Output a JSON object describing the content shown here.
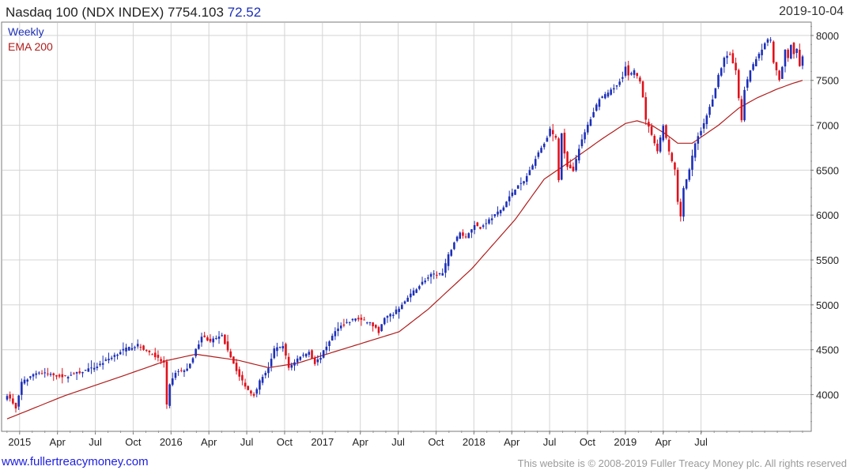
{
  "header": {
    "title": "Nasdaq 100 (NDX INDEX) 7754.103",
    "change": "72.52",
    "date": "2019-10-04"
  },
  "footer": {
    "link": "www.fullertreacymoney.com",
    "copyright": "This website is © 2008-2019 Fuller Treacy Money plc. All rights reserved"
  },
  "colors": {
    "up": "#1c2fb8",
    "down": "#e0101a",
    "ema": "#b01c1c",
    "grid": "#d4d4d4"
  },
  "chart_data": {
    "type": "candlestick",
    "legend": [
      {
        "label": "Weekly",
        "color": "#1c2fb8"
      },
      {
        "label": "EMA 200",
        "color": "#b01c1c"
      }
    ],
    "x_tick_labels": [
      "2015",
      "Apr",
      "Jul",
      "Oct",
      "2016",
      "Apr",
      "Jul",
      "Oct",
      "2017",
      "Apr",
      "Jul",
      "Oct",
      "2018",
      "Apr",
      "Jul",
      "Oct",
      "2019",
      "Apr",
      "Jul"
    ],
    "y_ticks": [
      4000,
      4500,
      5000,
      5500,
      6000,
      6500,
      7000,
      7500,
      8000
    ],
    "ylim": [
      3600,
      8140
    ],
    "close_anchors": [
      [
        0,
        4000
      ],
      [
        3,
        3850
      ],
      [
        5,
        4130
      ],
      [
        10,
        4250
      ],
      [
        20,
        4200
      ],
      [
        30,
        4300
      ],
      [
        35,
        4400
      ],
      [
        40,
        4500
      ],
      [
        45,
        4550
      ],
      [
        50,
        4450
      ],
      [
        54,
        4350
      ],
      [
        55,
        3880
      ],
      [
        56,
        4100
      ],
      [
        58,
        4250
      ],
      [
        62,
        4280
      ],
      [
        64,
        4420
      ],
      [
        67,
        4650
      ],
      [
        70,
        4600
      ],
      [
        74,
        4650
      ],
      [
        78,
        4350
      ],
      [
        80,
        4200
      ],
      [
        83,
        4050
      ],
      [
        85,
        4000
      ],
      [
        87,
        4150
      ],
      [
        90,
        4300
      ],
      [
        92,
        4500
      ],
      [
        95,
        4550
      ],
      [
        97,
        4300
      ],
      [
        100,
        4400
      ],
      [
        104,
        4480
      ],
      [
        106,
        4350
      ],
      [
        108,
        4420
      ],
      [
        111,
        4600
      ],
      [
        114,
        4750
      ],
      [
        117,
        4800
      ],
      [
        120,
        4850
      ],
      [
        125,
        4800
      ],
      [
        128,
        4700
      ],
      [
        130,
        4850
      ],
      [
        133,
        4900
      ],
      [
        136,
        5000
      ],
      [
        140,
        5150
      ],
      [
        143,
        5250
      ],
      [
        146,
        5330
      ],
      [
        150,
        5350
      ],
      [
        152,
        5550
      ],
      [
        154,
        5700
      ],
      [
        156,
        5800
      ],
      [
        158,
        5750
      ],
      [
        161,
        5900
      ],
      [
        163,
        5850
      ],
      [
        165,
        5920
      ],
      [
        168,
        6000
      ],
      [
        170,
        6050
      ],
      [
        173,
        6200
      ],
      [
        176,
        6330
      ],
      [
        178,
        6370
      ],
      [
        180,
        6500
      ],
      [
        183,
        6700
      ],
      [
        185,
        6800
      ],
      [
        187,
        6950
      ],
      [
        189,
        6850
      ],
      [
        190,
        6400
      ],
      [
        191,
        6900
      ],
      [
        192,
        6700
      ],
      [
        193,
        6550
      ],
      [
        195,
        6500
      ],
      [
        197,
        6750
      ],
      [
        200,
        7000
      ],
      [
        202,
        7150
      ],
      [
        204,
        7300
      ],
      [
        207,
        7350
      ],
      [
        210,
        7450
      ],
      [
        212,
        7550
      ],
      [
        213,
        7650
      ],
      [
        214,
        7550
      ],
      [
        216,
        7600
      ],
      [
        218,
        7500
      ],
      [
        219,
        7300
      ],
      [
        220,
        7050
      ],
      [
        222,
        6900
      ],
      [
        224,
        6700
      ],
      [
        226,
        7000
      ],
      [
        228,
        6700
      ],
      [
        230,
        6500
      ],
      [
        231,
        6150
      ],
      [
        232,
        6000
      ],
      [
        233,
        6300
      ],
      [
        235,
        6500
      ],
      [
        237,
        6800
      ],
      [
        239,
        6950
      ],
      [
        241,
        7100
      ],
      [
        243,
        7300
      ],
      [
        245,
        7550
      ],
      [
        247,
        7750
      ],
      [
        249,
        7800
      ],
      [
        251,
        7600
      ],
      [
        252,
        7300
      ],
      [
        253,
        7050
      ],
      [
        254,
        7400
      ],
      [
        256,
        7600
      ],
      [
        258,
        7750
      ],
      [
        260,
        7850
      ],
      [
        262,
        7950
      ],
      [
        263,
        7950
      ],
      [
        264,
        7700
      ],
      [
        265,
        7600
      ],
      [
        266,
        7500
      ],
      [
        267,
        7650
      ],
      [
        268,
        7850
      ],
      [
        269,
        7750
      ],
      [
        270,
        7900
      ],
      [
        271,
        7800
      ],
      [
        272,
        7850
      ],
      [
        273,
        7650
      ],
      [
        274,
        7760
      ]
    ],
    "ema_anchors": [
      [
        0,
        3730
      ],
      [
        20,
        3990
      ],
      [
        40,
        4210
      ],
      [
        55,
        4380
      ],
      [
        65,
        4450
      ],
      [
        80,
        4380
      ],
      [
        90,
        4300
      ],
      [
        100,
        4350
      ],
      [
        110,
        4450
      ],
      [
        125,
        4600
      ],
      [
        135,
        4700
      ],
      [
        145,
        4950
      ],
      [
        160,
        5400
      ],
      [
        175,
        5950
      ],
      [
        185,
        6400
      ],
      [
        195,
        6620
      ],
      [
        205,
        6850
      ],
      [
        213,
        7020
      ],
      [
        217,
        7050
      ],
      [
        222,
        7000
      ],
      [
        227,
        6900
      ],
      [
        231,
        6800
      ],
      [
        236,
        6800
      ],
      [
        245,
        7000
      ],
      [
        252,
        7190
      ],
      [
        258,
        7300
      ],
      [
        265,
        7400
      ],
      [
        270,
        7460
      ],
      [
        274,
        7500
      ]
    ],
    "n_weeks": 275,
    "title": "Nasdaq 100 (NDX INDEX) 7754.103",
    "xlabel": "",
    "ylabel": ""
  }
}
